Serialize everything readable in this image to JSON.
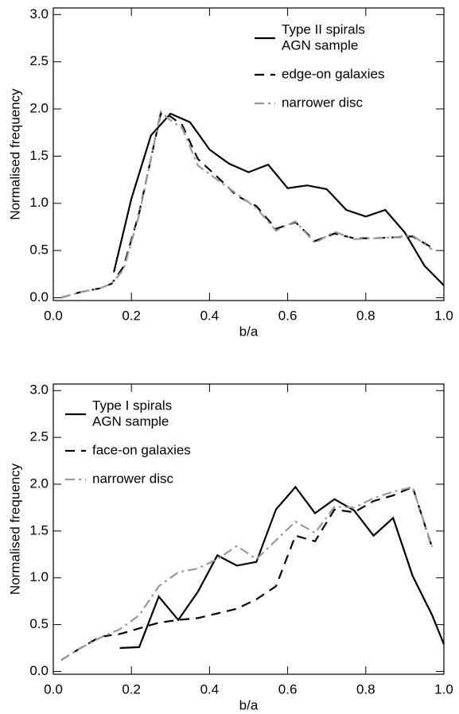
{
  "chart_data": [
    {
      "type": "line",
      "xlabel": "b/a",
      "ylabel": "Normalised frequency",
      "xlim": [
        0,
        1
      ],
      "ylim": [
        -0.03,
        3.07
      ],
      "xticks": [
        {
          "value": 0,
          "label": "0.0"
        },
        {
          "value": 0.2,
          "label": "0.2"
        },
        {
          "value": 0.4,
          "label": "0.4"
        },
        {
          "value": 0.6,
          "label": "0.6"
        },
        {
          "value": 0.8,
          "label": "0.8"
        },
        {
          "value": 1,
          "label": "1.0"
        }
      ],
      "yticks": [
        {
          "value": 0,
          "label": "0.0"
        },
        {
          "value": 0.5,
          "label": "0.5"
        },
        {
          "value": 1,
          "label": "1.0"
        },
        {
          "value": 1.5,
          "label": "1.5"
        },
        {
          "value": 2,
          "label": "2.0"
        },
        {
          "value": 2.5,
          "label": "2.5"
        },
        {
          "value": 3,
          "label": "3.0"
        }
      ],
      "legend": "upper right",
      "series": [
        {
          "name": [
            "Type II spirals",
            "AGN sample"
          ],
          "color": "#000000",
          "style": "solid",
          "x": [
            0.155,
            0.2,
            0.25,
            0.3,
            0.35,
            0.4,
            0.45,
            0.5,
            0.55,
            0.6,
            0.65,
            0.7,
            0.75,
            0.8,
            0.85,
            0.9,
            0.95,
            1.0
          ],
          "values": [
            0.27,
            1.05,
            1.72,
            1.95,
            1.86,
            1.57,
            1.42,
            1.33,
            1.41,
            1.16,
            1.19,
            1.15,
            0.93,
            0.86,
            0.93,
            0.69,
            0.34,
            0.13
          ]
        },
        {
          "name": [
            "edge-on galaxies"
          ],
          "color": "#000000",
          "style": "dashed",
          "x": [
            0.02,
            0.07,
            0.12,
            0.15,
            0.18,
            0.22,
            0.275,
            0.3,
            0.33,
            0.37,
            0.42,
            0.47,
            0.52,
            0.57,
            0.62,
            0.67,
            0.72,
            0.77,
            0.82,
            0.87,
            0.92,
            0.97
          ],
          "values": [
            0.0,
            0.06,
            0.1,
            0.15,
            0.33,
            0.9,
            1.95,
            1.92,
            1.83,
            1.47,
            1.28,
            1.08,
            0.97,
            0.73,
            0.8,
            0.6,
            0.68,
            0.63,
            0.63,
            0.64,
            0.65,
            0.53
          ]
        },
        {
          "name": [
            "narrower disc"
          ],
          "color": "#999999",
          "style": "dashdot",
          "x": [
            0.02,
            0.07,
            0.12,
            0.15,
            0.18,
            0.22,
            0.275,
            0.3,
            0.33,
            0.37,
            0.42,
            0.47,
            0.52,
            0.57,
            0.62,
            0.67,
            0.72,
            0.77,
            0.82,
            0.87,
            0.92,
            0.97
          ],
          "values": [
            0.0,
            0.06,
            0.1,
            0.15,
            0.3,
            0.88,
            1.97,
            1.88,
            1.8,
            1.4,
            1.25,
            1.1,
            0.95,
            0.71,
            0.81,
            0.58,
            0.7,
            0.62,
            0.63,
            0.64,
            0.66,
            0.51
          ]
        }
      ]
    },
    {
      "type": "line",
      "xlabel": "b/a",
      "ylabel": "Normalised frequency",
      "xlim": [
        0,
        1
      ],
      "ylim": [
        -0.03,
        3.07
      ],
      "xticks": [
        {
          "value": 0,
          "label": "0.0"
        },
        {
          "value": 0.2,
          "label": "0.2"
        },
        {
          "value": 0.4,
          "label": "0.4"
        },
        {
          "value": 0.6,
          "label": "0.6"
        },
        {
          "value": 0.8,
          "label": "0.8"
        },
        {
          "value": 1,
          "label": "1.0"
        }
      ],
      "yticks": [
        {
          "value": 0,
          "label": "0.0"
        },
        {
          "value": 0.5,
          "label": "0.5"
        },
        {
          "value": 1,
          "label": "1.0"
        },
        {
          "value": 1.5,
          "label": "1.5"
        },
        {
          "value": 2,
          "label": "2.0"
        },
        {
          "value": 2.5,
          "label": "2.5"
        },
        {
          "value": 3,
          "label": "3.0"
        }
      ],
      "legend": "upper left",
      "series": [
        {
          "name": [
            "Type I spirals",
            "AGN sample"
          ],
          "color": "#000000",
          "style": "solid",
          "x": [
            0.17,
            0.22,
            0.27,
            0.32,
            0.37,
            0.42,
            0.47,
            0.52,
            0.57,
            0.62,
            0.67,
            0.72,
            0.77,
            0.82,
            0.87,
            0.92,
            0.97,
            1.0
          ],
          "values": [
            0.25,
            0.26,
            0.8,
            0.55,
            0.85,
            1.24,
            1.13,
            1.17,
            1.73,
            1.97,
            1.69,
            1.84,
            1.72,
            1.45,
            1.64,
            1.02,
            0.6,
            0.29
          ]
        },
        {
          "name": [
            "face-on galaxies"
          ],
          "color": "#000000",
          "style": "dashed",
          "x": [
            0.02,
            0.07,
            0.12,
            0.17,
            0.22,
            0.27,
            0.32,
            0.37,
            0.42,
            0.47,
            0.52,
            0.57,
            0.62,
            0.67,
            0.72,
            0.77,
            0.82,
            0.87,
            0.92,
            0.97
          ],
          "values": [
            0.12,
            0.25,
            0.37,
            0.4,
            0.46,
            0.52,
            0.55,
            0.57,
            0.62,
            0.67,
            0.77,
            0.91,
            1.45,
            1.39,
            1.73,
            1.7,
            1.82,
            1.88,
            1.97,
            1.32
          ]
        },
        {
          "name": [
            "narrower disc"
          ],
          "color": "#999999",
          "style": "dashdot",
          "x": [
            0.02,
            0.07,
            0.12,
            0.17,
            0.22,
            0.27,
            0.32,
            0.37,
            0.42,
            0.47,
            0.52,
            0.57,
            0.62,
            0.67,
            0.72,
            0.77,
            0.82,
            0.87,
            0.92,
            0.97
          ],
          "values": [
            0.12,
            0.25,
            0.36,
            0.45,
            0.6,
            0.91,
            1.06,
            1.1,
            1.2,
            1.34,
            1.2,
            1.4,
            1.6,
            1.48,
            1.76,
            1.75,
            1.85,
            1.92,
            1.97,
            1.33
          ]
        }
      ]
    }
  ]
}
